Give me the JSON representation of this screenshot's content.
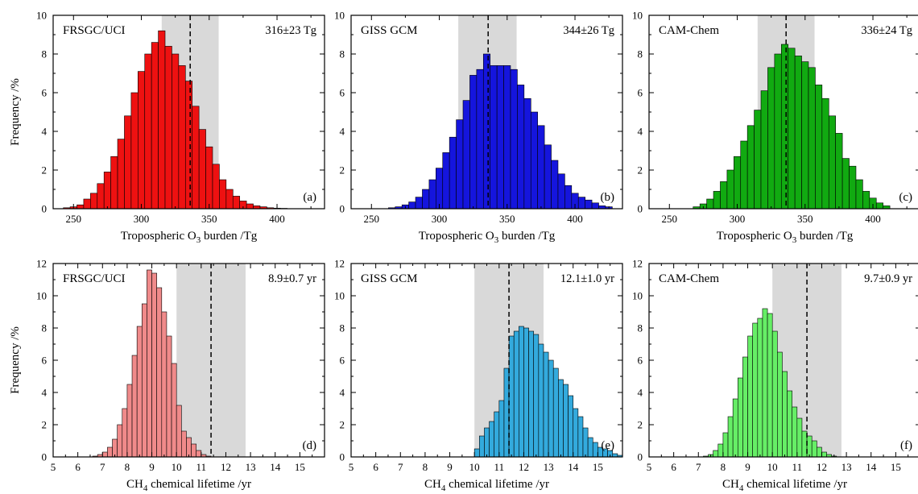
{
  "chart_data": [
    {
      "panel": "(a)",
      "type": "bar",
      "title": "FRSGC/UCI",
      "stat": "316±23 Tg",
      "xlabel_pre": "Tropospheric O",
      "xlabel_sub": "3",
      "xlabel_post": " burden  /Tg",
      "ylabel": "Frequency  /%",
      "xlim": [
        235,
        435
      ],
      "ylim": [
        0,
        10
      ],
      "xticks": [
        250,
        300,
        350,
        400
      ],
      "yticks": [
        0,
        2,
        4,
        6,
        8,
        10
      ],
      "grey_band": [
        315,
        357
      ],
      "dashed_line": 336,
      "bin_width": 5,
      "color": "#ee1111",
      "bin_start": [
        242.5,
        247.5,
        252.5,
        257.5,
        262.5,
        267.5,
        272.5,
        277.5,
        282.5,
        287.5,
        292.5,
        297.5,
        302.5,
        307.5,
        312.5,
        317.5,
        322.5,
        327.5,
        332.5,
        337.5,
        342.5,
        347.5,
        352.5,
        357.5,
        362.5,
        367.5,
        372.5,
        377.5,
        382.5,
        387.5,
        392.5,
        397.5,
        402.5
      ],
      "values": [
        0.05,
        0.1,
        0.2,
        0.5,
        0.8,
        1.3,
        1.9,
        2.7,
        3.6,
        4.8,
        6.0,
        7.1,
        8.0,
        8.6,
        9.2,
        8.4,
        8.0,
        7.4,
        6.6,
        5.3,
        4.1,
        3.2,
        2.3,
        1.5,
        1.0,
        0.65,
        0.4,
        0.25,
        0.15,
        0.1,
        0.05,
        0.03,
        0.02
      ]
    },
    {
      "panel": "(b)",
      "type": "bar",
      "title": "GISS GCM",
      "stat": "344±26 Tg",
      "xlabel_pre": "Tropospheric O",
      "xlabel_sub": "3",
      "xlabel_post": " burden  /Tg",
      "ylabel": "",
      "xlim": [
        235,
        435
      ],
      "ylim": [
        0,
        10
      ],
      "xticks": [
        250,
        300,
        350,
        400
      ],
      "yticks": [
        0,
        2,
        4,
        6,
        8,
        10
      ],
      "grey_band": [
        314,
        357
      ],
      "dashed_line": 336,
      "bin_width": 5,
      "color": "#1515dd",
      "bin_start": [
        262.5,
        267.5,
        272.5,
        277.5,
        282.5,
        287.5,
        292.5,
        297.5,
        302.5,
        307.5,
        312.5,
        317.5,
        322.5,
        327.5,
        332.5,
        337.5,
        342.5,
        347.5,
        352.5,
        357.5,
        362.5,
        367.5,
        372.5,
        377.5,
        382.5,
        387.5,
        392.5,
        397.5,
        402.5,
        407.5,
        412.5,
        417.5,
        422.5
      ],
      "values": [
        0.05,
        0.1,
        0.2,
        0.35,
        0.6,
        1.0,
        1.5,
        2.1,
        2.9,
        3.7,
        4.6,
        5.6,
        6.9,
        7.2,
        8.0,
        7.4,
        7.4,
        7.4,
        7.2,
        6.4,
        5.7,
        5.0,
        4.3,
        3.3,
        2.5,
        1.8,
        1.2,
        0.8,
        0.6,
        0.45,
        0.3,
        0.15,
        0.1
      ]
    },
    {
      "panel": "(c)",
      "type": "bar",
      "title": "CAM-Chem",
      "stat": "336±24 Tg",
      "xlabel_pre": "Tropospheric O",
      "xlabel_sub": "3",
      "xlabel_post": " burden  /Tg",
      "ylabel": "",
      "xlim": [
        235,
        435
      ],
      "ylim": [
        0,
        10
      ],
      "xticks": [
        250,
        300,
        350,
        400
      ],
      "yticks": [
        0,
        2,
        4,
        6,
        8,
        10
      ],
      "grey_band": [
        315,
        357
      ],
      "dashed_line": 336,
      "bin_width": 5,
      "color": "#11aa11",
      "bin_start": [
        267.5,
        272.5,
        277.5,
        282.5,
        287.5,
        292.5,
        297.5,
        302.5,
        307.5,
        312.5,
        317.5,
        322.5,
        327.5,
        332.5,
        337.5,
        342.5,
        347.5,
        352.5,
        357.5,
        362.5,
        367.5,
        372.5,
        377.5,
        382.5,
        387.5,
        392.5,
        397.5,
        402.5,
        407.5
      ],
      "values": [
        0.1,
        0.25,
        0.5,
        0.9,
        1.4,
        2.0,
        2.7,
        3.5,
        4.3,
        5.1,
        6.1,
        7.3,
        8.0,
        8.5,
        8.3,
        7.9,
        7.6,
        7.3,
        6.4,
        5.7,
        4.8,
        3.9,
        2.6,
        2.2,
        1.5,
        0.9,
        0.55,
        0.3,
        0.15
      ]
    },
    {
      "panel": "(d)",
      "type": "bar",
      "title": "FRSGC/UCI",
      "stat": "8.9±0.7 yr",
      "xlabel_pre": "CH",
      "xlabel_sub": "4",
      "xlabel_post": " chemical lifetime  /yr",
      "ylabel": "Frequency  /%",
      "xlim": [
        5,
        16
      ],
      "ylim": [
        0,
        12
      ],
      "xticks": [
        5,
        6,
        7,
        8,
        9,
        10,
        11,
        12,
        13,
        14,
        15
      ],
      "yticks": [
        0,
        2,
        4,
        6,
        8,
        10,
        12
      ],
      "grey_band": [
        10.0,
        12.8
      ],
      "dashed_line": 11.4,
      "bin_width": 0.2,
      "color": "#f08a8a",
      "bin_start": [
        6.6,
        6.8,
        7.0,
        7.2,
        7.4,
        7.6,
        7.8,
        8.0,
        8.2,
        8.4,
        8.6,
        8.8,
        9.0,
        9.2,
        9.4,
        9.6,
        9.8,
        10.0,
        10.2,
        10.4,
        10.6,
        10.8,
        11.0,
        11.2
      ],
      "values": [
        0.05,
        0.15,
        0.3,
        0.6,
        1.1,
        2.0,
        3.0,
        4.5,
        6.3,
        8.1,
        9.5,
        11.6,
        11.4,
        10.5,
        9.0,
        7.5,
        5.8,
        3.2,
        1.6,
        1.2,
        0.8,
        0.4,
        0.15,
        0.05
      ]
    },
    {
      "panel": "(e)",
      "type": "bar",
      "title": "GISS GCM",
      "stat": "12.1±1.0 yr",
      "xlabel_pre": "CH",
      "xlabel_sub": "4",
      "xlabel_post": " chemical lifetime  /yr",
      "ylabel": "",
      "xlim": [
        5,
        16
      ],
      "ylim": [
        0,
        12
      ],
      "xticks": [
        5,
        6,
        7,
        8,
        9,
        10,
        11,
        12,
        13,
        14,
        15
      ],
      "yticks": [
        0,
        2,
        4,
        6,
        8,
        10,
        12
      ],
      "grey_band": [
        10.0,
        12.8
      ],
      "dashed_line": 11.4,
      "bin_width": 0.2,
      "color": "#33aadd",
      "bin_start": [
        10.0,
        10.2,
        10.4,
        10.6,
        10.8,
        11.0,
        11.2,
        11.4,
        11.6,
        11.8,
        12.0,
        12.2,
        12.4,
        12.6,
        12.8,
        13.0,
        13.2,
        13.4,
        13.6,
        13.8,
        14.0,
        14.2,
        14.4,
        14.6,
        14.8,
        15.0,
        15.2,
        15.4,
        15.6,
        15.8
      ],
      "values": [
        0.5,
        1.3,
        1.8,
        2.2,
        2.8,
        3.5,
        5.5,
        7.5,
        7.8,
        8.1,
        8.0,
        7.8,
        7.6,
        7.0,
        6.5,
        6.0,
        5.5,
        4.8,
        4.5,
        3.8,
        3.0,
        2.5,
        1.8,
        1.2,
        0.9,
        0.6,
        0.5,
        0.4,
        0.2,
        0.1
      ]
    },
    {
      "panel": "(f)",
      "type": "bar",
      "title": "CAM-Chem",
      "stat": "9.7±0.9 yr",
      "xlabel_pre": "CH",
      "xlabel_sub": "4",
      "xlabel_post": " chemical lifetime  /yr",
      "ylabel": "",
      "xlim": [
        5,
        16
      ],
      "ylim": [
        0,
        12
      ],
      "xticks": [
        5,
        6,
        7,
        8,
        9,
        10,
        11,
        12,
        13,
        14,
        15
      ],
      "yticks": [
        0,
        2,
        4,
        6,
        8,
        10,
        12
      ],
      "grey_band": [
        10.0,
        12.8
      ],
      "dashed_line": 11.4,
      "bin_width": 0.2,
      "color": "#66ee66",
      "bin_start": [
        7.2,
        7.4,
        7.6,
        7.8,
        8.0,
        8.2,
        8.4,
        8.6,
        8.8,
        9.0,
        9.2,
        9.4,
        9.6,
        9.8,
        10.0,
        10.2,
        10.4,
        10.6,
        10.8,
        11.0,
        11.2,
        11.4,
        11.6,
        11.8,
        12.0,
        12.2,
        12.4
      ],
      "values": [
        0.05,
        0.15,
        0.4,
        0.8,
        1.5,
        2.5,
        3.6,
        4.9,
        6.2,
        7.5,
        8.3,
        8.6,
        9.2,
        8.9,
        7.8,
        6.5,
        5.3,
        4.1,
        3.1,
        2.4,
        1.6,
        1.3,
        1.0,
        0.6,
        0.3,
        0.15,
        0.05
      ]
    }
  ]
}
